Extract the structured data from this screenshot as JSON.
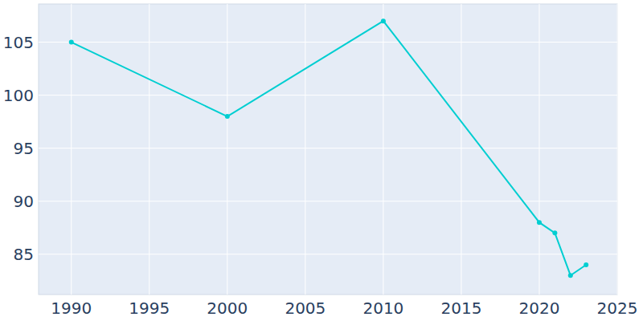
{
  "chart_data": {
    "type": "line",
    "x": [
      1990,
      2000,
      2010,
      2020,
      2021,
      2022,
      2023
    ],
    "values": [
      105,
      98,
      107,
      88,
      87,
      83,
      84
    ],
    "color": "#00ced1",
    "marker": "circle",
    "xlim": [
      1987.9,
      2025
    ],
    "xticks": [
      1990,
      1995,
      2000,
      2005,
      2010,
      2015,
      2020,
      2025
    ],
    "ylim": [
      81.2,
      108.6
    ],
    "yticks": [
      85,
      90,
      95,
      100,
      105
    ],
    "grid": true
  }
}
